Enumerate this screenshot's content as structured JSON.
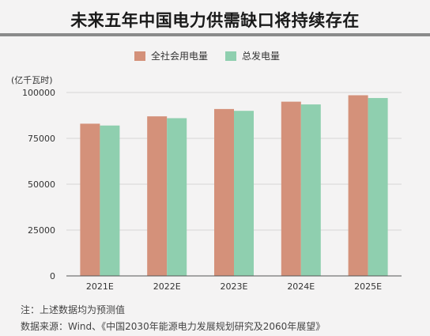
{
  "chart_data": {
    "type": "bar",
    "title": "未来五年中国电力供需缺口将持续存在",
    "unit_label": "(亿千瓦时)",
    "categories": [
      "2021E",
      "2022E",
      "2023E",
      "2024E",
      "2025E"
    ],
    "series": [
      {
        "name": "全社会用电量",
        "color": "#d4917a",
        "values": [
          83000,
          87000,
          91000,
          95000,
          98500
        ]
      },
      {
        "name": "总发电量",
        "color": "#8fcfaf",
        "values": [
          82000,
          86000,
          90000,
          93500,
          97000
        ]
      }
    ],
    "ylim": [
      0,
      100000
    ],
    "yticks": [
      "0",
      "25000",
      "50000",
      "75000",
      "100000"
    ],
    "ytick_values": [
      0,
      25000,
      50000,
      75000,
      100000
    ],
    "grid": true,
    "legend_position": "top-center"
  },
  "notes": {
    "note1": "注：上述数据均为预测值",
    "note2": "数据来源：Wind、《中国2030年能源电力发展规划研究及2060年展望》"
  }
}
